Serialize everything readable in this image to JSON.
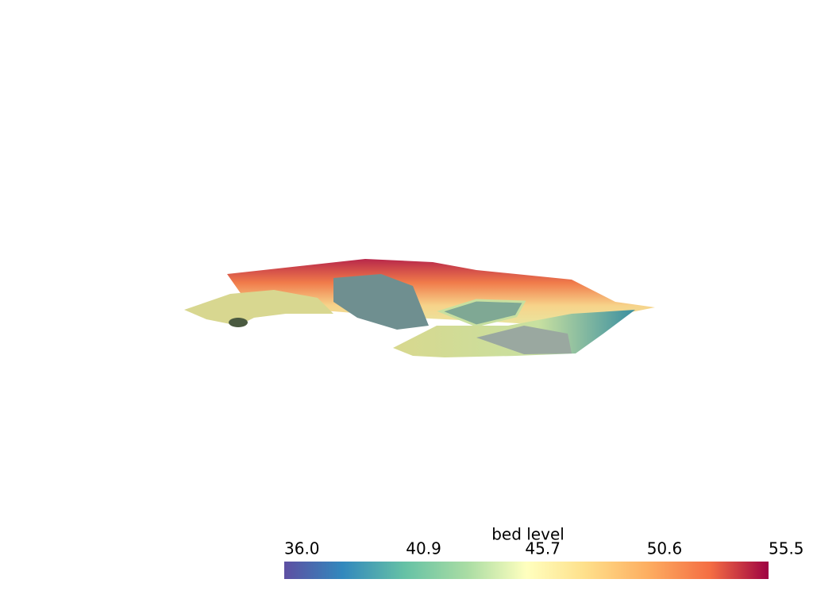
{
  "colorbar": {
    "title": "bed level",
    "range": [
      36,
      55.5
    ],
    "ticks": [
      {
        "value": 36,
        "label": "36.0"
      },
      40.9,
      45.7,
      50.6,
      55.5
    ]
  }
}
